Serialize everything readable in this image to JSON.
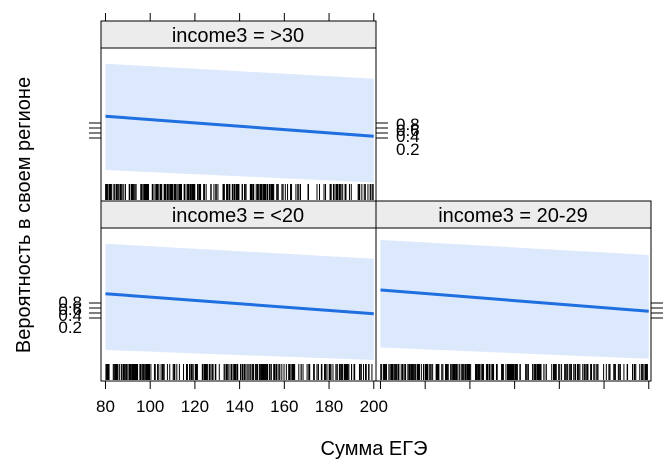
{
  "chart_data": {
    "type": "line",
    "title": "",
    "xlabel": "Сумма ЕГЭ",
    "ylabel": "Вероятность в своем регионе",
    "xlim": [
      78,
      201
    ],
    "x_ticks": [
      "80",
      "100",
      "120",
      "140",
      "160",
      "180",
      "200"
    ],
    "y_ticks": [
      "0.2",
      "0.4",
      "0.6",
      "0.8"
    ],
    "grid": false,
    "colors": {
      "line": "#1f6fe0",
      "band": "#dce8fb",
      "strip": "#ececec"
    },
    "panels": [
      {
        "name": "income3 = >30",
        "line": {
          "x": [
            80,
            200
          ],
          "y": [
            0.55,
            0.39
          ]
        },
        "band": {
          "upper": [
            0.97,
            0.85
          ],
          "lower": [
            0.12,
            0.02
          ]
        }
      },
      {
        "name": "income3 = <20",
        "line": {
          "x": [
            80,
            200
          ],
          "y": [
            0.57,
            0.41
          ]
        },
        "band": {
          "upper": [
            0.97,
            0.85
          ],
          "lower": [
            0.12,
            0.04
          ]
        }
      },
      {
        "name": "income3 = 20-29",
        "line": {
          "x": [
            80,
            200
          ],
          "y": [
            0.6,
            0.43
          ]
        },
        "band": {
          "upper": [
            1.0,
            0.88
          ],
          "lower": [
            0.14,
            0.05
          ]
        }
      }
    ]
  }
}
